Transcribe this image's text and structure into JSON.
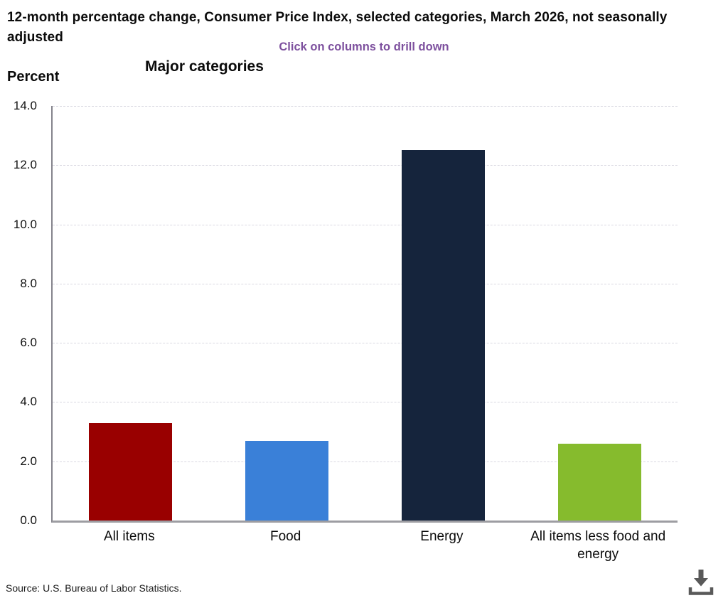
{
  "header": {
    "title": "12-month percentage change, Consumer Price Index, selected categories, March 2026, not seasonally adjusted",
    "subtitle": "Click on columns to drill down"
  },
  "chart_data": {
    "type": "bar",
    "title": "Major categories",
    "ylabel": "Percent",
    "xlabel": "",
    "categories": [
      "All items",
      "Food",
      "Energy",
      "All items less food and energy"
    ],
    "values": [
      3.3,
      2.7,
      12.5,
      2.6
    ],
    "bar_colors": [
      "#990000",
      "#3a80d8",
      "#15243c",
      "#86bb2d"
    ],
    "ylim": [
      0,
      14
    ],
    "ytick_step": 2,
    "ytick_labels": [
      "0.0",
      "2.0",
      "4.0",
      "6.0",
      "8.0",
      "10.0",
      "12.0",
      "14.0"
    ],
    "grid": "horizontal-dashed",
    "legend": "none",
    "interaction_hint": "columns are clickable to drill down"
  },
  "colors": {
    "subtitle_purple": "#7d509e",
    "axis_gray": "#85848c",
    "baseline_gray": "#9d9da2",
    "gridline_gray": "#d9d8e1",
    "icon_gray": "#595959"
  },
  "footer": {
    "source": "Source: U.S. Bureau of Labor Statistics."
  },
  "icons": {
    "download": "download-icon"
  }
}
